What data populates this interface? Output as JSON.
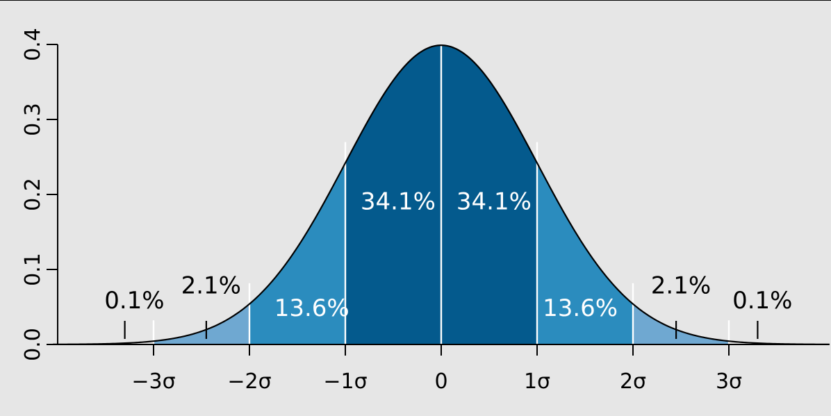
{
  "chart_data": {
    "type": "area",
    "title": "",
    "xlabel": "",
    "ylabel": "",
    "distribution": "standard normal density",
    "xlim": [
      -4,
      4
    ],
    "ylim": [
      0,
      0.4
    ],
    "grid": false,
    "x_ticks": [
      {
        "value": -3,
        "label": "−3σ"
      },
      {
        "value": -2,
        "label": "−2σ"
      },
      {
        "value": -1,
        "label": "−1σ"
      },
      {
        "value": 0,
        "label": "0"
      },
      {
        "value": 1,
        "label": "1σ"
      },
      {
        "value": 2,
        "label": "2σ"
      },
      {
        "value": 3,
        "label": "3σ"
      }
    ],
    "y_ticks": [
      {
        "value": 0.0,
        "label": "0.0"
      },
      {
        "value": 0.1,
        "label": "0.1"
      },
      {
        "value": 0.2,
        "label": "0.2"
      },
      {
        "value": 0.3,
        "label": "0.3"
      },
      {
        "value": 0.4,
        "label": "0.4"
      }
    ],
    "bands": [
      {
        "from": -3,
        "to": -2,
        "color": "#6fa8d1"
      },
      {
        "from": -2,
        "to": -1,
        "color": "#2b8cbe"
      },
      {
        "from": -1,
        "to": 0,
        "color": "#045a8d"
      },
      {
        "from": 0,
        "to": 1,
        "color": "#045a8d"
      },
      {
        "from": 1,
        "to": 2,
        "color": "#2b8cbe"
      },
      {
        "from": 2,
        "to": 3,
        "color": "#6fa8d1"
      }
    ],
    "region_labels": [
      {
        "text": "34.1%",
        "x": -0.45,
        "y": 0.18,
        "style": "light"
      },
      {
        "text": "34.1%",
        "x": 0.55,
        "y": 0.18,
        "style": "light"
      },
      {
        "text": "13.6%",
        "x": -1.35,
        "y": 0.038,
        "style": "light"
      },
      {
        "text": "13.6%",
        "x": 1.45,
        "y": 0.038,
        "style": "light"
      },
      {
        "text": "2.1%",
        "x": -2.4,
        "y": 0.068,
        "style": "dark"
      },
      {
        "text": "2.1%",
        "x": 2.5,
        "y": 0.068,
        "style": "dark"
      },
      {
        "text": "0.1%",
        "x": -3.2,
        "y": 0.048,
        "style": "dark"
      },
      {
        "text": "0.1%",
        "x": 3.35,
        "y": 0.048,
        "style": "dark"
      }
    ],
    "tail_markers": [
      -3.3,
      -2.45,
      2.45,
      3.3
    ],
    "curve_color": "#000000",
    "divider_color": "#ffffff"
  }
}
